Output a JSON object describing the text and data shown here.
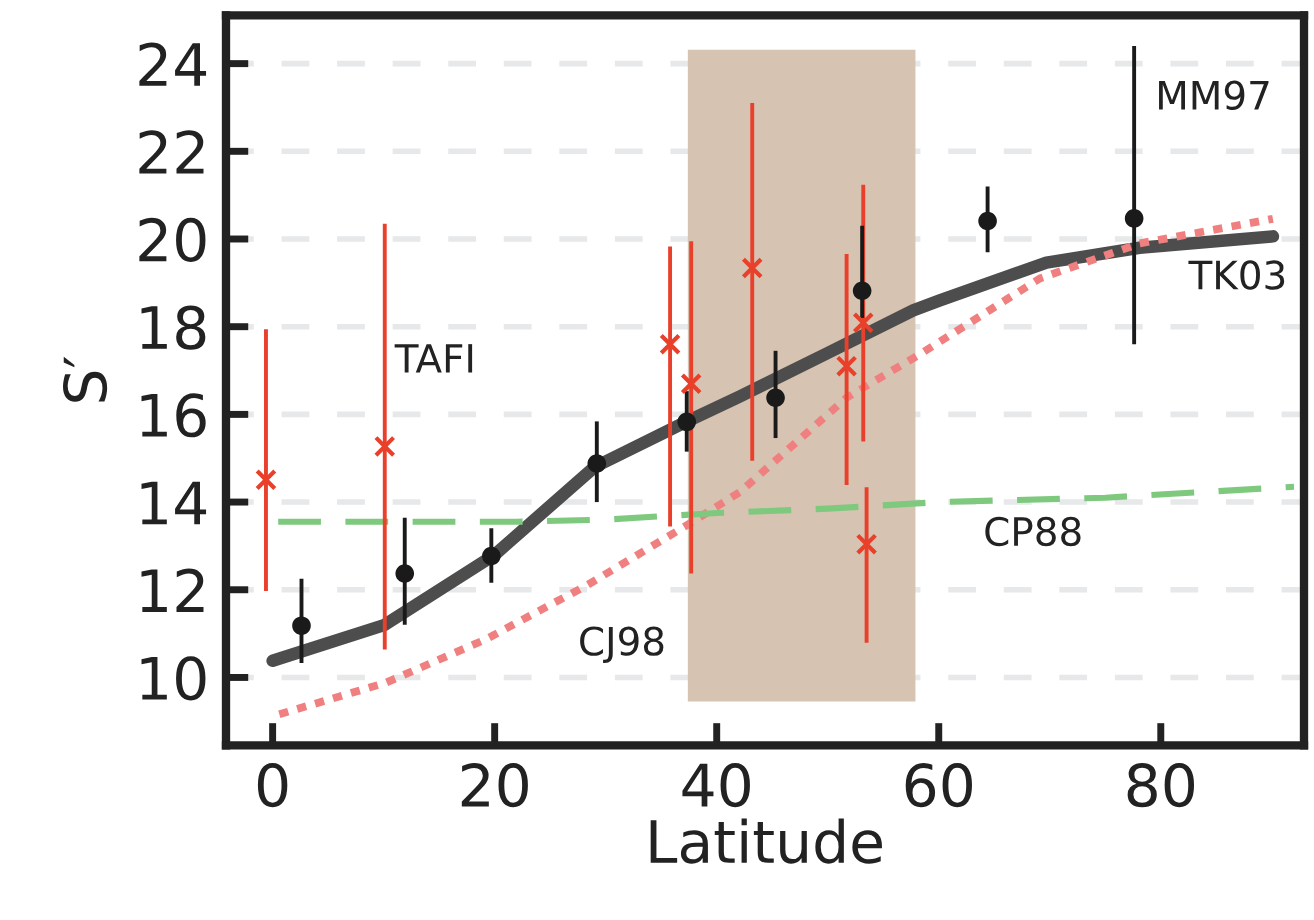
{
  "chart_data": {
    "type": "scatter",
    "xlabel": "Latitude",
    "ylabel": "S′",
    "xlim": [
      -4.2,
      92.9
    ],
    "ylim": [
      8.45,
      25.1
    ],
    "xticks": [
      0,
      20,
      40,
      60,
      80
    ],
    "yticks": [
      10,
      12,
      14,
      16,
      18,
      20,
      22,
      24
    ],
    "grid": "y",
    "legend": false,
    "bands": [
      {
        "axis": "x",
        "from": 37.4,
        "to": 57.9,
        "color": "#d7c3b1"
      }
    ],
    "series": [
      {
        "name": "TK03",
        "type": "line",
        "color": "#4d4d4d",
        "marker": "none",
        "line_style": "solid",
        "x": [
          0,
          10.1,
          20,
          29,
          37,
          42.1,
          50,
          57.7,
          60.1,
          69.7,
          78.1,
          90.1
        ],
        "values": [
          10.38,
          11.2,
          12.8,
          14.8,
          15.8,
          16.41,
          17.4,
          18.37,
          18.6,
          19.46,
          19.8,
          20.06
        ]
      },
      {
        "name": "CJ98",
        "type": "line",
        "color": "#f08080",
        "marker": "none",
        "line_style": "dotted",
        "x": [
          0.6,
          10.2,
          19.2,
          28.3,
          37.3,
          42.1,
          51.7,
          58.3,
          69.1,
          78.1,
          90.1
        ],
        "values": [
          9.16,
          9.88,
          10.87,
          12.1,
          13.47,
          14.23,
          16.38,
          17.37,
          19.1,
          19.9,
          20.46
        ]
      },
      {
        "name": "CP88",
        "type": "line",
        "color": "#7fc97f",
        "marker": "none",
        "line_style": "dashed",
        "x": [
          0.5,
          22,
          30,
          40,
          50,
          60,
          75,
          92
        ],
        "values": [
          13.55,
          13.55,
          13.6,
          13.75,
          13.85,
          14.0,
          14.1,
          14.35
        ]
      },
      {
        "name": "TAFI",
        "color": "#e8402a",
        "marker": "cross",
        "x": [
          -0.6,
          10.1,
          35.8,
          37.7,
          43.2,
          51.7,
          53.2,
          53.5
        ],
        "values": [
          14.51,
          15.27,
          17.6,
          16.7,
          19.34,
          17.1,
          18.09,
          13.04
        ],
        "errors": [
          [
            11.97,
            17.94
          ],
          [
            10.64,
            20.35
          ],
          [
            13.44,
            19.83
          ],
          [
            12.37,
            19.95
          ],
          [
            14.94,
            23.1
          ],
          [
            14.39,
            19.66
          ],
          [
            15.38,
            21.24
          ],
          [
            10.79,
            14.34
          ]
        ]
      },
      {
        "name": "MM97",
        "color": "#1a1a1a",
        "marker": "circle",
        "x": [
          2.6,
          11.9,
          19.7,
          29.2,
          37.3,
          45.3,
          53.1,
          64.4,
          77.6
        ],
        "values": [
          11.18,
          12.37,
          12.77,
          14.88,
          15.83,
          16.38,
          18.82,
          20.41,
          20.47
        ],
        "errors": [
          [
            10.33,
            12.25
          ],
          [
            11.2,
            13.64
          ],
          [
            12.16,
            13.4
          ],
          [
            14.0,
            15.84
          ],
          [
            15.15,
            16.53
          ],
          [
            15.46,
            17.45
          ],
          [
            18.2,
            20.3
          ],
          [
            19.7,
            21.2
          ],
          [
            17.6,
            24.4
          ]
        ]
      }
    ]
  }
}
